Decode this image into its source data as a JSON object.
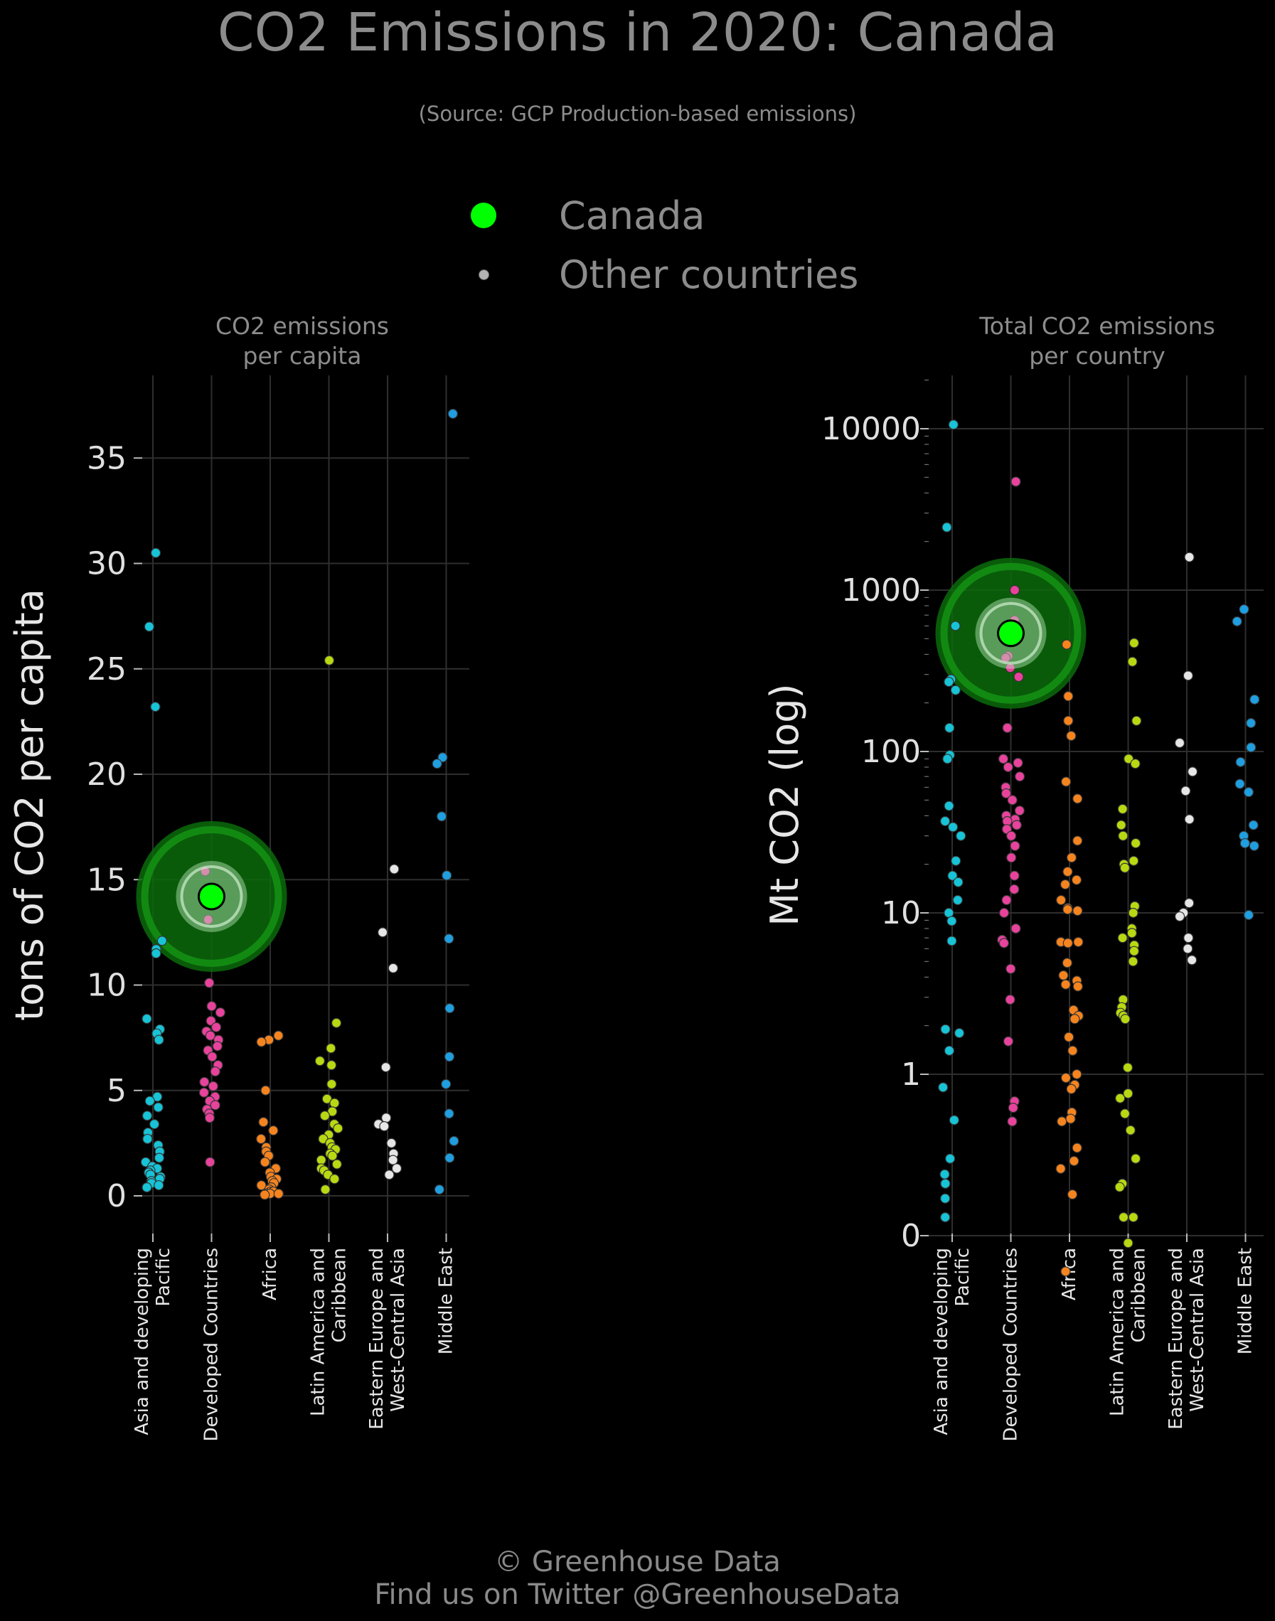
{
  "title": "CO2 Emissions in 2020: Canada",
  "subtitle": "(Source: GCP Production-based emissions)",
  "legend": {
    "highlight_label": "Canada",
    "others_label": "Other countries",
    "highlight_color": "#00ff00",
    "others_color": "#b3b3b3"
  },
  "footer": {
    "line1": "© Greenhouse Data",
    "line2": "Find us on Twitter @GreenhouseData"
  },
  "colors": {
    "Asia and developing Pacific": "#17c3d6",
    "Developed Countries": "#e8439c",
    "Africa": "#f5841f",
    "Latin America and Caribbean": "#b8d912",
    "Eastern Europe and West-Central Asia": "#e6e6e6",
    "Middle East": "#1f9ee0"
  },
  "chart_data": [
    {
      "type": "scatter",
      "title": "CO2 emissions per capita",
      "ylabel": "tons of CO2 per capita",
      "ylim": [
        0,
        39
      ],
      "yticks": [
        0,
        5,
        10,
        15,
        20,
        25,
        30,
        35
      ],
      "ytick_labels": [
        "0",
        "5",
        "10",
        "15",
        "20",
        "25",
        "30",
        "35"
      ],
      "log": false,
      "grid": true,
      "categories": [
        "Asia and developing Pacific",
        "Developed Countries",
        "Africa",
        "Latin America and Caribbean",
        "Eastern Europe and West-Central Asia",
        "Middle East"
      ],
      "category_labels": [
        [
          "Asia and developing",
          "Pacific"
        ],
        [
          "Developed Countries"
        ],
        [
          "Africa"
        ],
        [
          "Latin America and",
          "Caribbean"
        ],
        [
          "Eastern Europe and",
          "West-Central Asia"
        ],
        [
          "Middle East"
        ]
      ],
      "series": [
        {
          "values": [
            30.5,
            27.0,
            23.2,
            12.1,
            11.7,
            11.5,
            8.4,
            7.9,
            7.7,
            7.4,
            4.7,
            4.5,
            4.2,
            3.8,
            3.4,
            3.0,
            2.7,
            2.4,
            2.1,
            1.8,
            1.6,
            1.4,
            1.3,
            1.2,
            1.1,
            1.0,
            0.9,
            0.8,
            0.7,
            0.6,
            0.5,
            0.4
          ]
        },
        {
          "values": [
            15.4,
            13.1,
            10.1,
            9.0,
            8.7,
            8.3,
            8.0,
            7.8,
            7.6,
            7.4,
            7.1,
            6.9,
            6.6,
            6.2,
            5.9,
            5.4,
            5.2,
            4.9,
            4.7,
            4.5,
            4.3,
            4.1,
            3.9,
            3.7,
            1.6
          ]
        },
        {
          "values": [
            7.6,
            7.4,
            7.3,
            5.0,
            3.5,
            3.1,
            2.7,
            2.3,
            2.1,
            1.9,
            1.6,
            1.3,
            1.1,
            0.9,
            0.8,
            0.7,
            0.6,
            0.5,
            0.4,
            0.3,
            0.2,
            0.2,
            0.1,
            0.1,
            0.1,
            0.05
          ]
        },
        {
          "values": [
            25.4,
            8.2,
            7.0,
            6.4,
            6.2,
            5.3,
            4.6,
            4.4,
            4.0,
            3.8,
            3.4,
            3.2,
            2.9,
            2.7,
            2.5,
            2.3,
            2.2,
            2.0,
            1.9,
            1.7,
            1.5,
            1.3,
            1.2,
            1.0,
            0.8,
            0.3
          ]
        },
        {
          "values": [
            15.5,
            12.5,
            10.8,
            6.1,
            3.7,
            3.4,
            3.3,
            2.5,
            2.0,
            1.7,
            1.3,
            1.0
          ]
        },
        {
          "values": [
            37.1,
            20.8,
            20.5,
            18.0,
            15.2,
            12.2,
            8.9,
            6.6,
            5.3,
            3.9,
            2.6,
            1.8,
            0.3
          ]
        }
      ],
      "highlight": {
        "name": "Canada",
        "category": "Developed Countries",
        "value": 14.2
      }
    },
    {
      "type": "scatter",
      "title": "Total CO2 emissions per country",
      "ylabel": "Mt CO2 (log)",
      "yticks": [
        0,
        1,
        10,
        100,
        1000,
        10000
      ],
      "ytick_labels": [
        "0",
        "1",
        "10",
        "100",
        "1000",
        "10000"
      ],
      "log": true,
      "grid": true,
      "categories": [
        "Asia and developing Pacific",
        "Developed Countries",
        "Africa",
        "Latin America and Caribbean",
        "Eastern Europe and West-Central Asia",
        "Middle East"
      ],
      "category_labels": [
        [
          "Asia and developing",
          "Pacific"
        ],
        [
          "Developed Countries"
        ],
        [
          "Africa"
        ],
        [
          "Latin America and",
          "Caribbean"
        ],
        [
          "Eastern Europe and",
          "West-Central Asia"
        ],
        [
          "Middle East"
        ]
      ],
      "series": [
        {
          "values": [
            10600,
            2450,
            600,
            280,
            270,
            240,
            140,
            95,
            90,
            46,
            37,
            34,
            30,
            21,
            17,
            15.5,
            12,
            10,
            8.9,
            6.7,
            1.9,
            1.8,
            1.4,
            0.83,
            0.52,
            0.3,
            0.24,
            0.21,
            0.17,
            0.13
          ]
        },
        {
          "values": [
            4700,
            1000,
            650,
            390,
            380,
            330,
            290,
            140,
            90,
            85,
            80,
            70,
            60,
            55,
            50,
            43,
            40,
            38,
            37,
            35,
            33,
            30,
            26,
            22,
            17,
            14,
            12,
            10,
            8,
            6.8,
            6.5,
            4.5,
            2.9,
            1.6,
            0.68,
            0.62,
            0.51
          ]
        },
        {
          "values": [
            460,
            220,
            155,
            125,
            65,
            51,
            28,
            22,
            18,
            16,
            15,
            12,
            10.7,
            10.5,
            10.3,
            6.6,
            6.6,
            6.5,
            4.9,
            4.1,
            3.8,
            3.6,
            3.5,
            2.5,
            2.3,
            2.2,
            1.7,
            1.4,
            1.0,
            0.95,
            0.86,
            0.81,
            0.58,
            0.53,
            0.51,
            0.35,
            0.29,
            0.26,
            0.18,
            0.06
          ]
        },
        {
          "values": [
            470,
            360,
            155,
            90,
            84,
            44,
            35,
            30,
            27,
            21,
            20,
            19,
            11,
            10,
            8,
            7.5,
            7,
            6.3,
            5.8,
            5,
            2.9,
            2.6,
            2.4,
            2.3,
            2.2,
            1.1,
            0.76,
            0.71,
            0.57,
            0.45,
            0.3,
            0.21,
            0.2,
            0.13,
            0.13,
            0.09
          ]
        },
        {
          "values": [
            1600,
            295,
            113,
            75,
            57,
            38,
            11.5,
            10,
            9.5,
            7,
            6,
            5.1
          ]
        },
        {
          "values": [
            760,
            640,
            210,
            150,
            106,
            86,
            63,
            56,
            35,
            30,
            27,
            26,
            9.7
          ]
        }
      ],
      "highlight": {
        "name": "Canada",
        "category": "Developed Countries",
        "value": 540
      }
    }
  ]
}
